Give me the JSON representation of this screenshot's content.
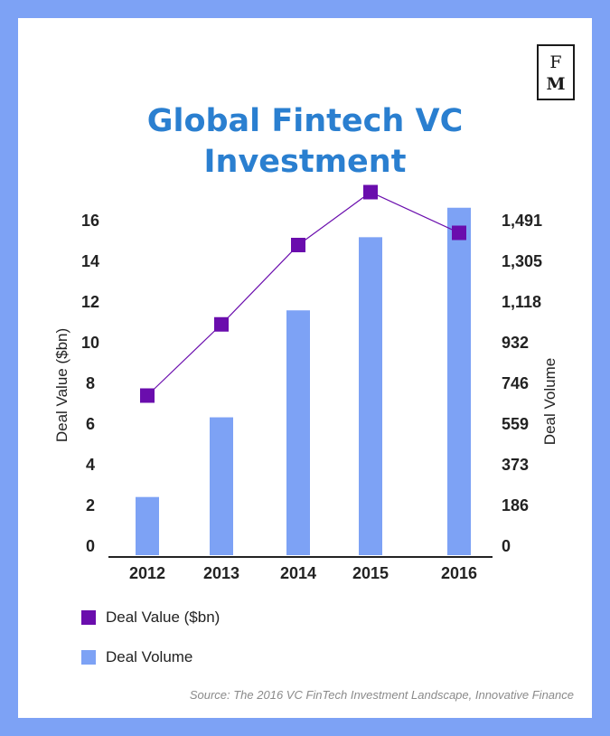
{
  "logo": {
    "line1": "F",
    "line2": "M"
  },
  "title": {
    "line1": "Global Fintech VC",
    "line2": "Investment"
  },
  "source": "Source: The 2016 VC FinTech Investment Landscape, Innovative Finance",
  "legend": [
    {
      "label": "Deal Value ($bn)",
      "color": "#6a0dad",
      "shape": "square"
    },
    {
      "label": "Deal Volume",
      "color": "#7da2f5",
      "shape": "square"
    }
  ],
  "colors": {
    "bar": "#7da2f5",
    "line_marker": "#6a0dad",
    "title": "#2a7fd0",
    "border": "#7da2f5"
  },
  "chart_data": {
    "type": "bar+line",
    "categories": [
      "2012",
      "2013",
      "2014",
      "2015",
      "2016"
    ],
    "series": [
      {
        "name": "Deal Value ($bn)",
        "type": "line",
        "axis": "left",
        "values": [
          7.4,
          10.9,
          14.8,
          17.4,
          15.4
        ]
      },
      {
        "name": "Deal Volume",
        "type": "bar",
        "axis": "right",
        "values": [
          225,
          590,
          1080,
          1415,
          1550
        ]
      }
    ],
    "ylabel": "Deal Value ($bn)",
    "y2label": "Deal Volume",
    "yticks": [
      "0",
      "2",
      "4",
      "6",
      "8",
      "10",
      "12",
      "14",
      "16"
    ],
    "y2ticks": [
      "0",
      "186",
      "373",
      "559",
      "746",
      "932",
      "1,118",
      "1,305",
      "1,491"
    ],
    "ylim": [
      0,
      16
    ],
    "y2lim": [
      0,
      1491
    ],
    "grid": false,
    "legend_position": "bottom-left"
  }
}
